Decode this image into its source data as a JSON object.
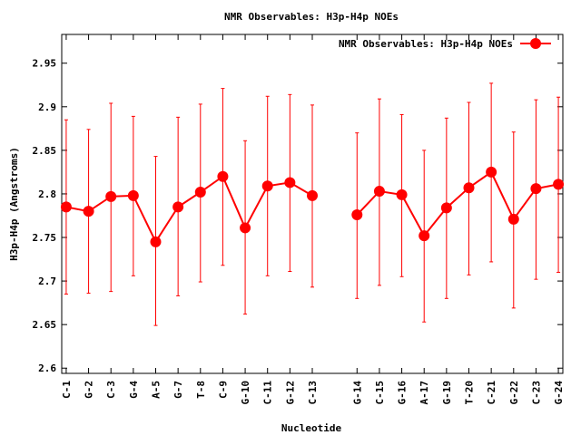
{
  "chart_data": {
    "type": "line",
    "title": "NMR Observables: H3p-H4p NOEs",
    "xlabel": "Nucleotide",
    "ylabel": "H3p-H4p (Angstroms)",
    "legend": {
      "label": "NMR Observables: H3p-H4p NOEs",
      "placement": "top-right"
    },
    "ylim": [
      2.594,
      2.983
    ],
    "xlim": [
      -0.2,
      22.2
    ],
    "yticks": [
      2.6,
      2.65,
      2.7,
      2.75,
      2.8,
      2.85,
      2.9,
      2.95
    ],
    "ytick_labels": [
      "2.6",
      "2.65",
      "2.7",
      "2.75",
      "2.8",
      "2.85",
      "2.9",
      "2.95"
    ],
    "color": "#ff0000",
    "grid": false,
    "series": [
      {
        "name": "NMR Observables: H3p-H4p NOEs",
        "categories": [
          "C-1",
          "G-2",
          "C-3",
          "G-4",
          "A-5",
          "G-7",
          "T-8",
          "C-9",
          "G-10",
          "C-11",
          "G-12",
          "C-13",
          "G-14",
          "C-15",
          "G-16",
          "A-17",
          "G-19",
          "T-20",
          "C-21",
          "G-22",
          "C-23",
          "G-24"
        ],
        "x": [
          0,
          1,
          2,
          3,
          4,
          5,
          6,
          7,
          8,
          9,
          10,
          11,
          13,
          14,
          15,
          16,
          17,
          18,
          19,
          20,
          21,
          22
        ],
        "values": [
          2.785,
          2.78,
          2.797,
          2.798,
          2.745,
          2.785,
          2.802,
          2.82,
          2.761,
          2.809,
          2.813,
          2.798,
          2.776,
          2.803,
          2.799,
          2.752,
          2.784,
          2.807,
          2.825,
          2.771,
          2.806,
          2.811
        ],
        "err_low": [
          2.685,
          2.686,
          2.688,
          2.706,
          2.649,
          2.683,
          2.699,
          2.718,
          2.662,
          2.706,
          2.711,
          2.693,
          2.68,
          2.695,
          2.705,
          2.653,
          2.68,
          2.707,
          2.722,
          2.669,
          2.702,
          2.71
        ],
        "err_high": [
          2.885,
          2.874,
          2.904,
          2.889,
          2.843,
          2.888,
          2.903,
          2.921,
          2.861,
          2.912,
          2.914,
          2.902,
          2.87,
          2.909,
          2.891,
          2.85,
          2.887,
          2.905,
          2.927,
          2.871,
          2.908,
          2.911
        ],
        "segments": [
          [
            0,
            11
          ],
          [
            12,
            21
          ]
        ]
      }
    ]
  }
}
